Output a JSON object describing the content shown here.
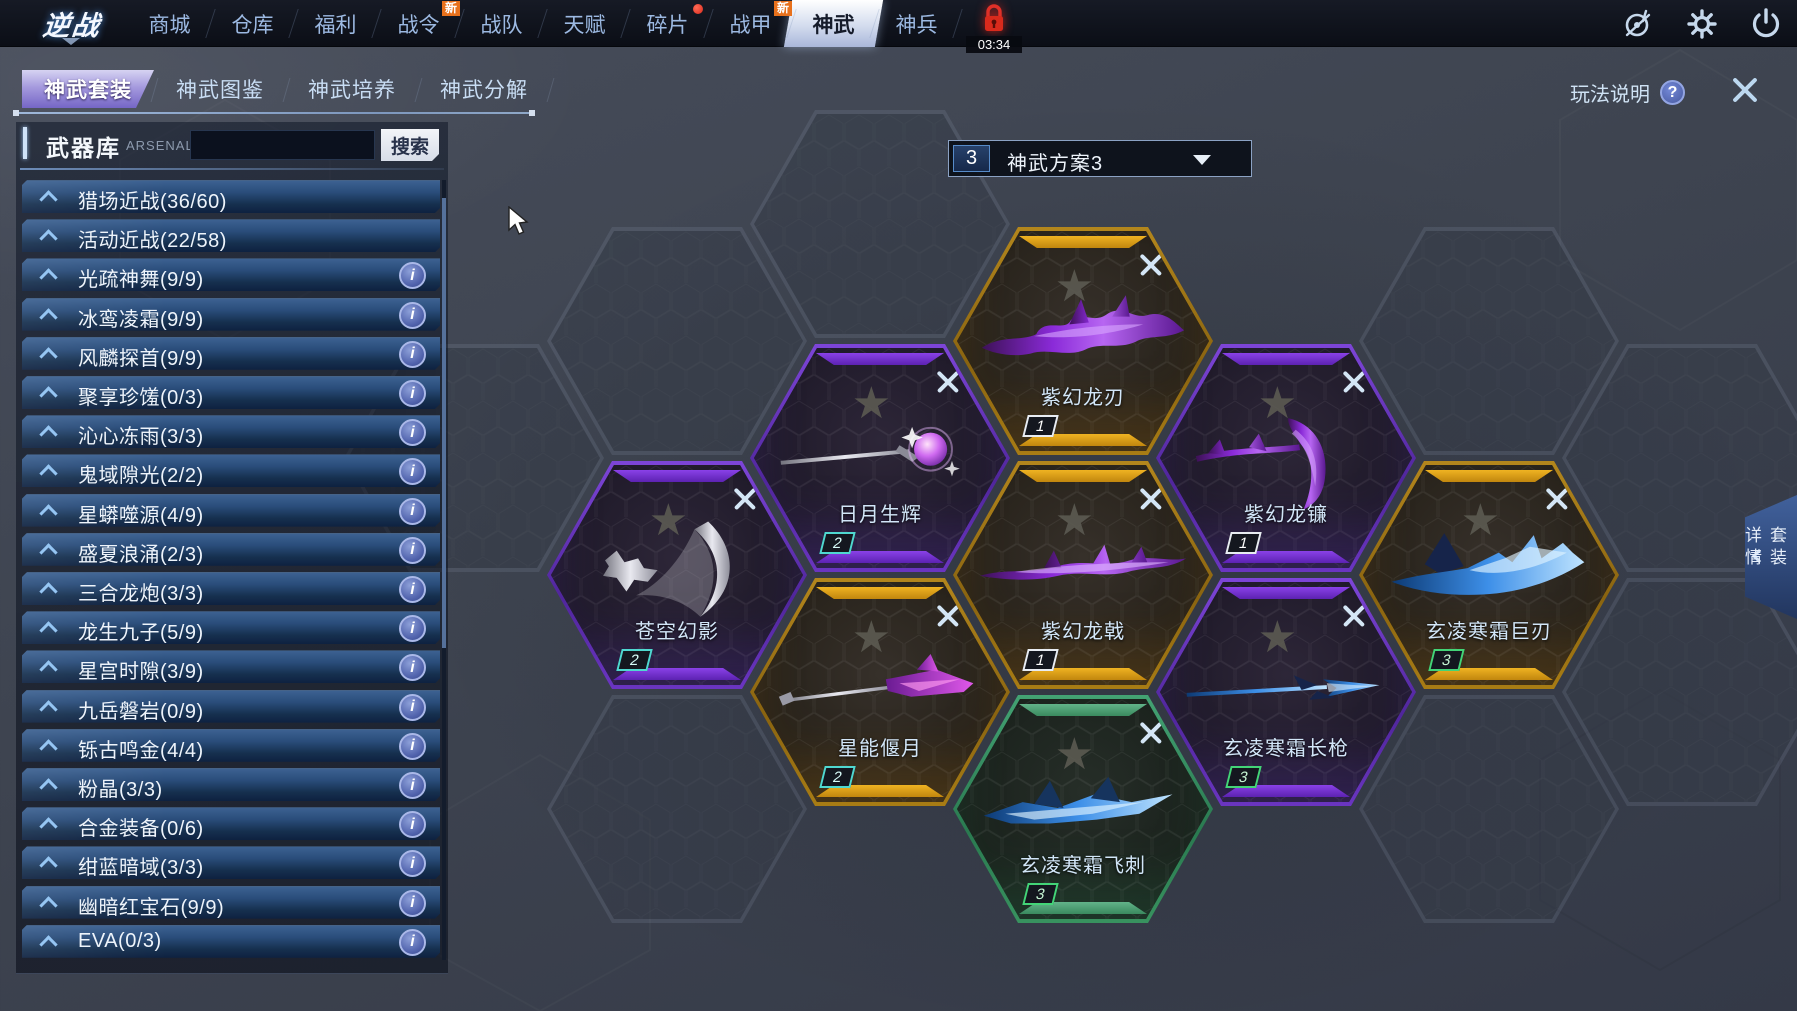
{
  "top_nav": {
    "logo_text": "逆战",
    "tabs": [
      {
        "label": "商城"
      },
      {
        "label": "仓库"
      },
      {
        "label": "福利"
      },
      {
        "label": "战令",
        "badge": "新"
      },
      {
        "label": "战队"
      },
      {
        "label": "天赋"
      },
      {
        "label": "碎片",
        "dot": true
      },
      {
        "label": "战甲",
        "badge": "新"
      },
      {
        "label": "神武",
        "selected": true
      },
      {
        "label": "神兵"
      }
    ],
    "lock_timer": "03:34",
    "system_icons": [
      "record-disabled-icon",
      "settings-gear-icon",
      "power-icon"
    ]
  },
  "sub_nav": {
    "tabs": [
      {
        "label": "神武套装",
        "selected": true
      },
      {
        "label": "神武图鉴"
      },
      {
        "label": "神武培养"
      },
      {
        "label": "神武分解"
      }
    ],
    "help_label": "玩法说明",
    "help_icon": "?"
  },
  "arsenal": {
    "title": "武器库",
    "subtitle": "ARSENAL",
    "search_value": "",
    "search_button": "搜索",
    "categories": [
      {
        "name": "猎场近战(36/60)",
        "info": false
      },
      {
        "name": "活动近战(22/58)",
        "info": false
      },
      {
        "name": "光疏神舞(9/9)",
        "info": true
      },
      {
        "name": "冰鸾凌霜(9/9)",
        "info": true
      },
      {
        "name": "风麟探首(9/9)",
        "info": true
      },
      {
        "name": "聚享珍馐(0/3)",
        "info": true
      },
      {
        "name": "沁心冻雨(3/3)",
        "info": true
      },
      {
        "name": "鬼域隙光(2/2)",
        "info": true
      },
      {
        "name": "星蟒噬源(4/9)",
        "info": true
      },
      {
        "name": "盛夏浪涌(2/3)",
        "info": true
      },
      {
        "name": "三合龙炮(3/3)",
        "info": true
      },
      {
        "name": "龙生九子(5/9)",
        "info": true
      },
      {
        "name": "星宫时隙(3/9)",
        "info": true
      },
      {
        "name": "九岳磐岩(0/9)",
        "info": true
      },
      {
        "name": "铄古鸣金(4/4)",
        "info": true
      },
      {
        "name": "粉晶(3/3)",
        "info": true
      },
      {
        "name": "合金装备(0/6)",
        "info": true
      },
      {
        "name": "绀蓝暗域(3/3)",
        "info": true
      },
      {
        "name": "幽暗红宝石(9/9)",
        "info": true
      },
      {
        "name": "EVA(0/3)",
        "info": true
      }
    ]
  },
  "plan_selector": {
    "number": "3",
    "label": "神武方案3"
  },
  "hex_grid": {
    "slots": [
      {
        "name": "紫幻龙刃",
        "level": "1",
        "tier": "gold"
      },
      {
        "name": "日月生辉",
        "level": "2",
        "tier": "purple"
      },
      {
        "name": "紫幻龙镰",
        "level": "1",
        "tier": "purple"
      },
      {
        "name": "苍空幻影",
        "level": "2",
        "tier": "purple"
      },
      {
        "name": "紫幻龙戟",
        "level": "1",
        "tier": "gold"
      },
      {
        "name": "玄凌寒霜巨刃",
        "level": "3",
        "tier": "gold"
      },
      {
        "name": "星能偃月",
        "level": "2",
        "tier": "gold"
      },
      {
        "name": "玄凌寒霜长枪",
        "level": "3",
        "tier": "purple"
      },
      {
        "name": "玄凌寒霜飞刺",
        "level": "3",
        "tier": "green"
      }
    ]
  },
  "side_tab": {
    "label": "套装详情"
  },
  "colors": {
    "gold_tier": "#c8961a",
    "purple_tier": "#7a3fd1",
    "green_tier": "#3aa36c",
    "level1_badge": "#e8ecf2",
    "level2_badge": "#4fd8d0",
    "level3_badge": "#43d477",
    "lock_red": "#d92a1c",
    "row_blue": "#2a4d7b",
    "new_badge_orange": "#e8711c"
  }
}
